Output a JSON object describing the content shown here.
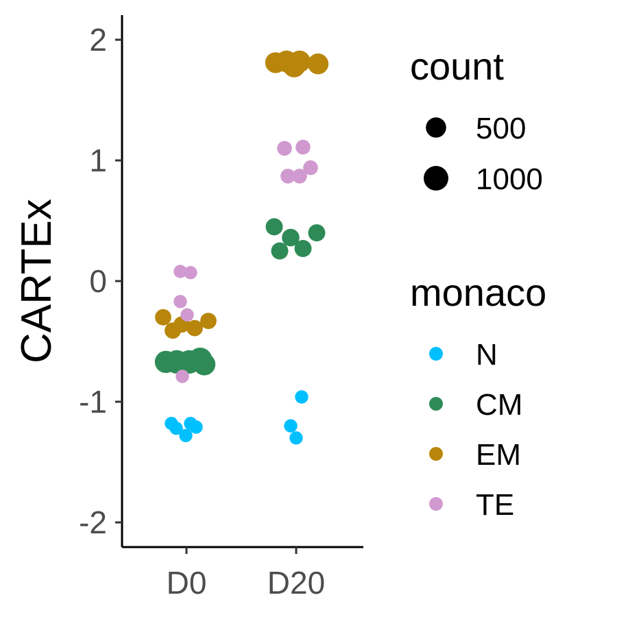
{
  "chart_data": {
    "type": "scatter",
    "title": "",
    "xlabel": "",
    "ylabel": "CARTEx",
    "categories": [
      "D0",
      "D20"
    ],
    "yticks": [
      "2",
      "1",
      "0",
      "-1",
      "-2"
    ],
    "ylim": [
      -2.2,
      2.2
    ],
    "grid": false,
    "size_legend": {
      "title": "count",
      "entries": [
        {
          "label": "500",
          "value": 500
        },
        {
          "label": "1000",
          "value": 1000
        }
      ]
    },
    "color_legend": {
      "title": "monaco",
      "entries": [
        {
          "label": "N",
          "color": "#00bfff"
        },
        {
          "label": "CM",
          "color": "#2e8b57"
        },
        {
          "label": "EM",
          "color": "#b8860b"
        },
        {
          "label": "TE",
          "color": "#d09ad0"
        }
      ]
    },
    "series": [
      {
        "name": "N",
        "color": "#00bfff",
        "points": [
          {
            "x": "D0",
            "jitter": -0.22,
            "y": -1.18,
            "count": 60
          },
          {
            "x": "D0",
            "jitter": -0.15,
            "y": -1.22,
            "count": 60
          },
          {
            "x": "D0",
            "jitter": -0.01,
            "y": -1.28,
            "count": 60
          },
          {
            "x": "D0",
            "jitter": 0.06,
            "y": -1.18,
            "count": 60
          },
          {
            "x": "D0",
            "jitter": 0.14,
            "y": -1.21,
            "count": 60
          },
          {
            "x": "D20",
            "jitter": -0.08,
            "y": -1.2,
            "count": 60
          },
          {
            "x": "D20",
            "jitter": 0.0,
            "y": -1.3,
            "count": 60
          },
          {
            "x": "D20",
            "jitter": 0.08,
            "y": -0.96,
            "count": 60
          }
        ]
      },
      {
        "name": "CM",
        "color": "#2e8b57",
        "points": [
          {
            "x": "D0",
            "jitter": -0.3,
            "y": -0.67,
            "count": 700
          },
          {
            "x": "D0",
            "jitter": -0.14,
            "y": -0.67,
            "count": 850
          },
          {
            "x": "D0",
            "jitter": 0.04,
            "y": -0.67,
            "count": 850
          },
          {
            "x": "D0",
            "jitter": 0.2,
            "y": -0.65,
            "count": 900
          },
          {
            "x": "D0",
            "jitter": 0.26,
            "y": -0.69,
            "count": 700
          },
          {
            "x": "D20",
            "jitter": -0.32,
            "y": 0.45,
            "count": 250
          },
          {
            "x": "D20",
            "jitter": -0.24,
            "y": 0.25,
            "count": 250
          },
          {
            "x": "D20",
            "jitter": -0.08,
            "y": 0.36,
            "count": 280
          },
          {
            "x": "D20",
            "jitter": 0.1,
            "y": 0.27,
            "count": 250
          },
          {
            "x": "D20",
            "jitter": 0.3,
            "y": 0.4,
            "count": 250
          }
        ]
      },
      {
        "name": "EM",
        "color": "#b8860b",
        "points": [
          {
            "x": "D0",
            "jitter": -0.34,
            "y": -0.3,
            "count": 200
          },
          {
            "x": "D0",
            "jitter": -0.2,
            "y": -0.41,
            "count": 200
          },
          {
            "x": "D0",
            "jitter": -0.07,
            "y": -0.36,
            "count": 200
          },
          {
            "x": "D0",
            "jitter": 0.12,
            "y": -0.39,
            "count": 200
          },
          {
            "x": "D0",
            "jitter": 0.32,
            "y": -0.33,
            "count": 200
          },
          {
            "x": "D20",
            "jitter": -0.3,
            "y": 1.81,
            "count": 550
          },
          {
            "x": "D20",
            "jitter": -0.14,
            "y": 1.82,
            "count": 650
          },
          {
            "x": "D20",
            "jitter": -0.03,
            "y": 1.78,
            "count": 700
          },
          {
            "x": "D20",
            "jitter": 0.05,
            "y": 1.82,
            "count": 650
          },
          {
            "x": "D20",
            "jitter": 0.32,
            "y": 1.8,
            "count": 550
          }
        ]
      },
      {
        "name": "TE",
        "color": "#d09ad0",
        "points": [
          {
            "x": "D0",
            "jitter": -0.09,
            "y": 0.08,
            "count": 60
          },
          {
            "x": "D0",
            "jitter": 0.06,
            "y": 0.07,
            "count": 60
          },
          {
            "x": "D0",
            "jitter": -0.09,
            "y": -0.17,
            "count": 60
          },
          {
            "x": "D0",
            "jitter": 0.01,
            "y": -0.28,
            "count": 60
          },
          {
            "x": "D0",
            "jitter": -0.06,
            "y": -0.79,
            "count": 60
          },
          {
            "x": "D20",
            "jitter": -0.17,
            "y": 1.1,
            "count": 120
          },
          {
            "x": "D20",
            "jitter": 0.1,
            "y": 1.11,
            "count": 120
          },
          {
            "x": "D20",
            "jitter": -0.12,
            "y": 0.87,
            "count": 120
          },
          {
            "x": "D20",
            "jitter": 0.05,
            "y": 0.87,
            "count": 120
          },
          {
            "x": "D20",
            "jitter": 0.21,
            "y": 0.94,
            "count": 120
          }
        ]
      }
    ]
  }
}
